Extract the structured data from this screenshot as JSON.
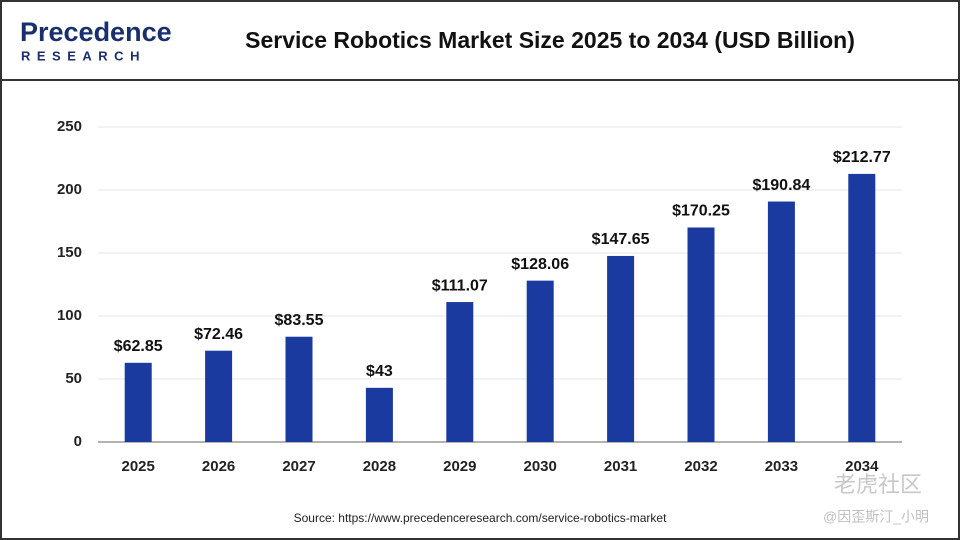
{
  "logo": {
    "name": "Precedence",
    "sub": "RESEARCH"
  },
  "chart_data": {
    "type": "bar",
    "title": "Service Robotics Market Size 2025 to 2034 (USD Billion)",
    "categories": [
      "2025",
      "2026",
      "2027",
      "2028",
      "2029",
      "2030",
      "2031",
      "2032",
      "2033",
      "2034"
    ],
    "values": [
      62.85,
      72.46,
      83.55,
      43,
      111.07,
      128.06,
      147.65,
      170.25,
      190.84,
      212.77
    ],
    "value_labels": [
      "$62.85",
      "$72.46",
      "$83.55",
      "$43",
      "$111.07",
      "$128.06",
      "$147.65",
      "$170.25",
      "$190.84",
      "$212.77"
    ],
    "color": "#1a3aa0",
    "ylim": [
      0,
      250
    ],
    "yticks": [
      0,
      50,
      100,
      150,
      200,
      250
    ],
    "grid": true,
    "source": "Source: https://www.precedenceresearch.com/service-robotics-market"
  },
  "watermark": {
    "brand": "老虎社区",
    "handle": "@因歪斯汀_小明"
  }
}
